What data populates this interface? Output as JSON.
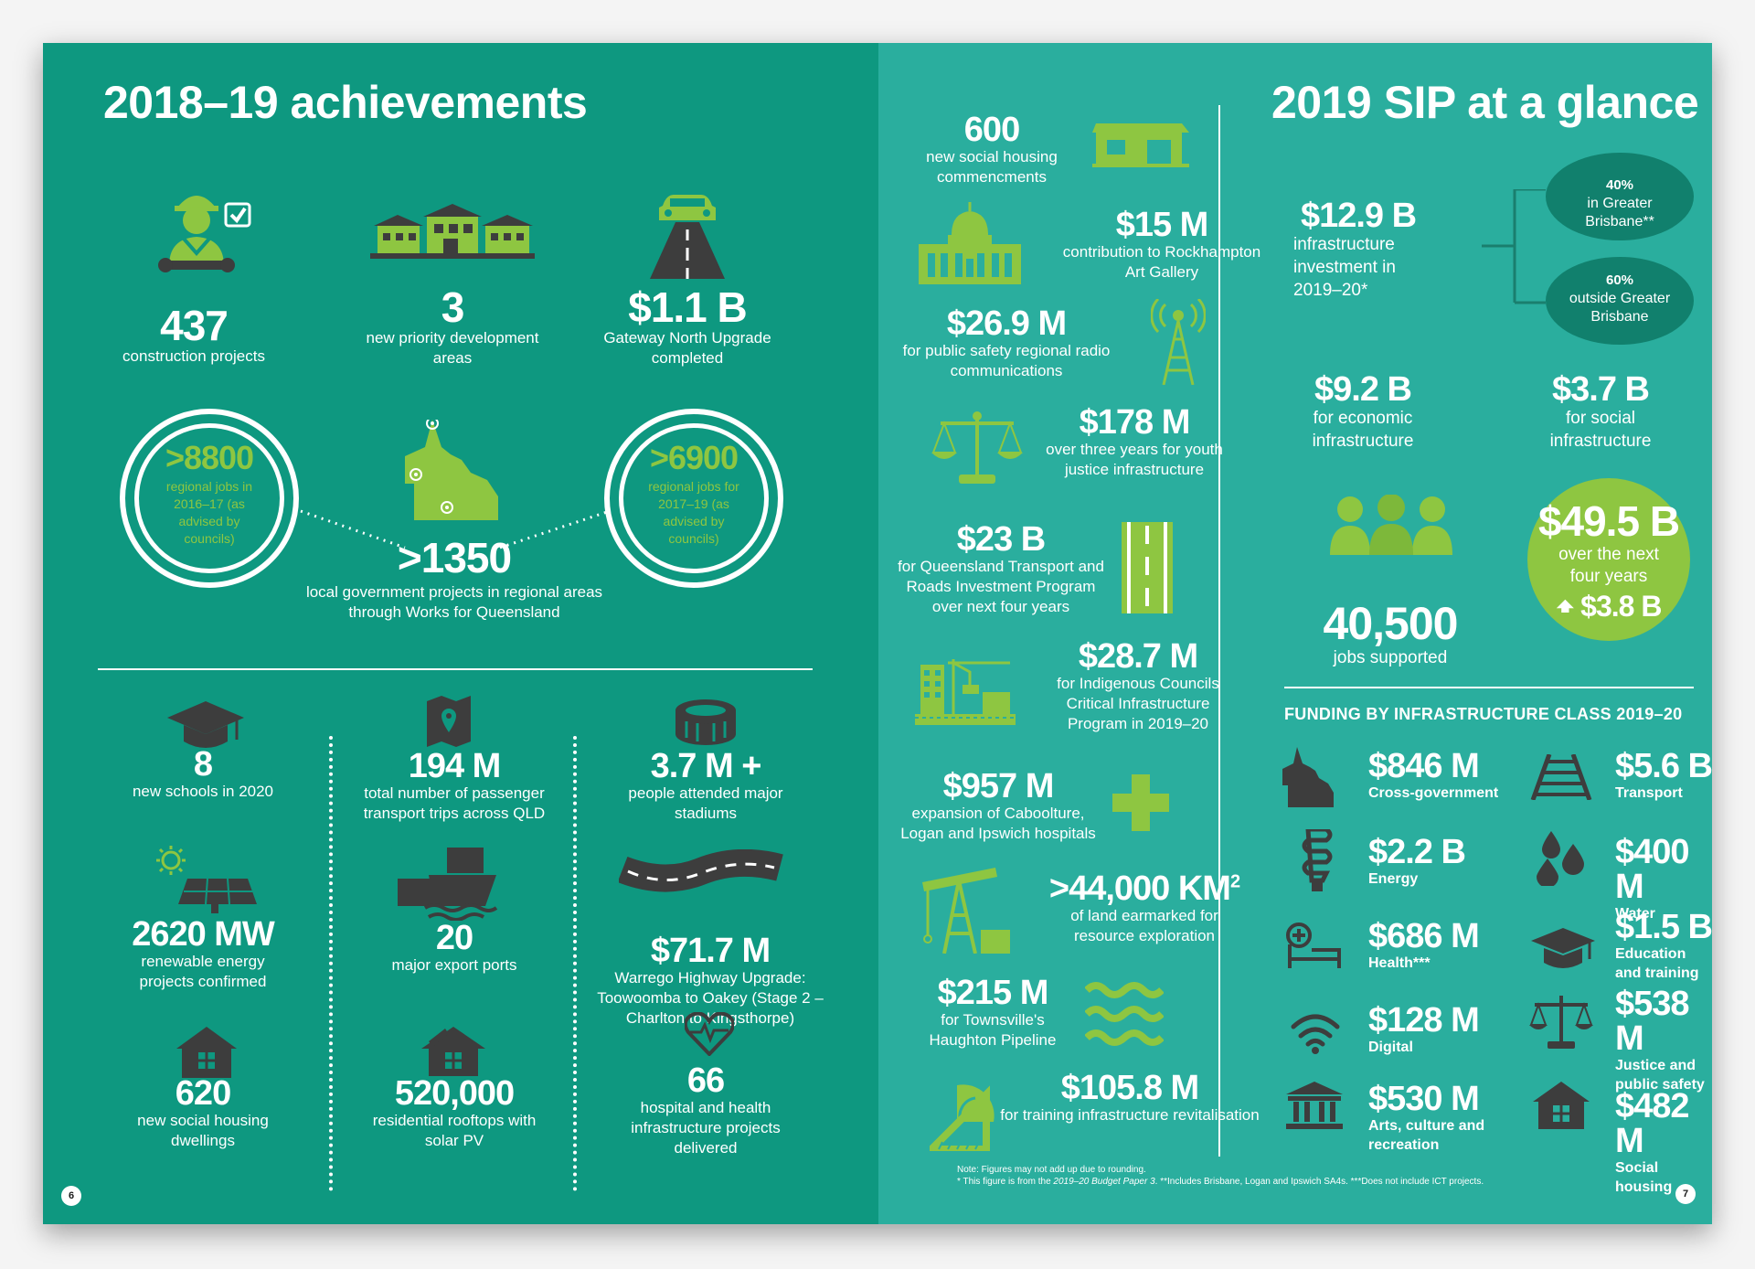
{
  "colors": {
    "left_bg": "#0e9880",
    "right_bg": "#2aae9e",
    "lime": "#8ec641",
    "dark_gray": "#3d3d3d"
  },
  "left": {
    "title": "2018–19 achievements",
    "page_number": "6",
    "top_stats": [
      {
        "value": "437",
        "label": "construction projects",
        "icon": "worker-icon"
      },
      {
        "value": "3",
        "label": "new priority development areas",
        "icon": "houses-icon"
      },
      {
        "value": "$1.1 B",
        "label": "Gateway North Upgrade completed",
        "icon": "road-car-icon"
      }
    ],
    "regional": {
      "left_circle": {
        "value": ">8800",
        "label": "regional jobs in 2016–17 (as advised by councils)"
      },
      "center": {
        "value": ">1350",
        "label": "local government projects in regional areas through Works for Queensland"
      },
      "right_circle": {
        "value": ">6900",
        "label": "regional jobs for 2017–19 (as advised by councils)"
      }
    },
    "col1": [
      {
        "value": "8",
        "label": "new schools in 2020",
        "icon": "graduation-cap-icon"
      },
      {
        "value": "2620 MW",
        "label": "renewable energy projects confirmed",
        "icon": "solar-panel-icon"
      },
      {
        "value": "620",
        "label": "new social housing dwellings",
        "icon": "house-icon"
      }
    ],
    "col2": [
      {
        "value": "194 M",
        "label": "total number of passenger transport trips across QLD",
        "icon": "map-pin-icon"
      },
      {
        "value": "20",
        "label": "major export ports",
        "icon": "ship-icon"
      },
      {
        "value": "520,000",
        "label": "residential rooftops with solar PV",
        "icon": "solar-house-icon"
      }
    ],
    "col3": [
      {
        "value": "3.7 M +",
        "label": "people attended major stadiums",
        "icon": "stadium-icon"
      },
      {
        "value": "$71.7 M",
        "label": "Warrego Highway Upgrade: Toowoomba to Oakey (Stage 2 – Charlton to Kingsthorpe)",
        "icon": "highway-icon"
      },
      {
        "value": "66",
        "label": "hospital and health infrastructure projects delivered",
        "icon": "heartbeat-icon"
      }
    ]
  },
  "middle": [
    {
      "value": "600",
      "label": "new social housing commencments",
      "icon": "social-housing-icon"
    },
    {
      "value": "$15 M",
      "label": "contribution to Rockhampton Art Gallery",
      "icon": "parliament-icon"
    },
    {
      "value": "$26.9 M",
      "label": "for public safety regional radio communications",
      "icon": "radio-tower-icon"
    },
    {
      "value": "$178 M",
      "label": "over three years for youth justice infrastructure",
      "icon": "scales-icon"
    },
    {
      "value": "$23 B",
      "label": "for Queensland Transport and Roads Investment Program over next four years",
      "icon": "road-icon"
    },
    {
      "value": "$28.7 M",
      "label": "for Indigenous Councils Critical Infrastructure Program in 2019–20",
      "icon": "construction-icon"
    },
    {
      "value": "$957 M",
      "label": "expansion of Caboolture, Logan and Ipswich hospitals",
      "icon": "health-cross-icon"
    },
    {
      "value": ">44,000 KM",
      "sup": "2",
      "label": "of land earmarked for resource exploration",
      "icon": "oil-pump-icon"
    },
    {
      "value": "$215 M",
      "label": "for Townsville's Haughton Pipeline",
      "icon": "water-waves-icon"
    },
    {
      "value": "$105.8 M",
      "label": "for training infrastructure revitalisation",
      "icon": "set-square-icon"
    }
  ],
  "right": {
    "title": "2019 SIP at a glance",
    "page_number": "7",
    "investment": {
      "value": "$12.9 B",
      "label": "infrastructure investment in 2019–20*"
    },
    "split": [
      {
        "pct": "40%",
        "label": "in Greater Brisbane**"
      },
      {
        "pct": "60%",
        "label": "outside Greater Brisbane"
      }
    ],
    "economic": {
      "value": "$9.2 B",
      "label": "for economic infrastructure"
    },
    "social": {
      "value": "$3.7 B",
      "label": "for social infrastructure"
    },
    "jobs": {
      "value": "40,500",
      "label": "jobs supported"
    },
    "four_years": {
      "value": "$49.5 B",
      "label": "over the next four years",
      "change": "$3.8 B"
    },
    "funding_heading": "FUNDING BY INFRASTRUCTURE CLASS 2019–20",
    "funding": [
      {
        "amount": "$846 M",
        "label": "Cross-government",
        "icon": "queensland-map-icon"
      },
      {
        "amount": "$5.6 B",
        "label": "Transport",
        "icon": "rail-track-icon"
      },
      {
        "amount": "$2.2 B",
        "label": "Energy",
        "icon": "light-bulb-icon"
      },
      {
        "amount": "$400 M",
        "label": "Water",
        "icon": "water-drops-icon"
      },
      {
        "amount": "$686 M",
        "label": "Health***",
        "icon": "hospital-bed-icon"
      },
      {
        "amount": "$1.5 B",
        "label": "Education and training",
        "icon": "graduation-cap-icon"
      },
      {
        "amount": "$128 M",
        "label": "Digital",
        "icon": "wifi-icon"
      },
      {
        "amount": "$538 M",
        "label": "Justice and public safety",
        "icon": "scales-icon"
      },
      {
        "amount": "$530 M",
        "label": "Arts, culture and recreation",
        "icon": "museum-icon"
      },
      {
        "amount": "$482 M",
        "label": "Social housing",
        "icon": "house-icon"
      }
    ],
    "note1": "Note: Figures may not add up due to rounding.",
    "note2_a": "* This figure is from the ",
    "note2_em": "2019–20 Budget Paper 3",
    "note2_b": ". **Includes Brisbane, Logan and Ipswich SA4s. ***Does not include ICT projects."
  }
}
